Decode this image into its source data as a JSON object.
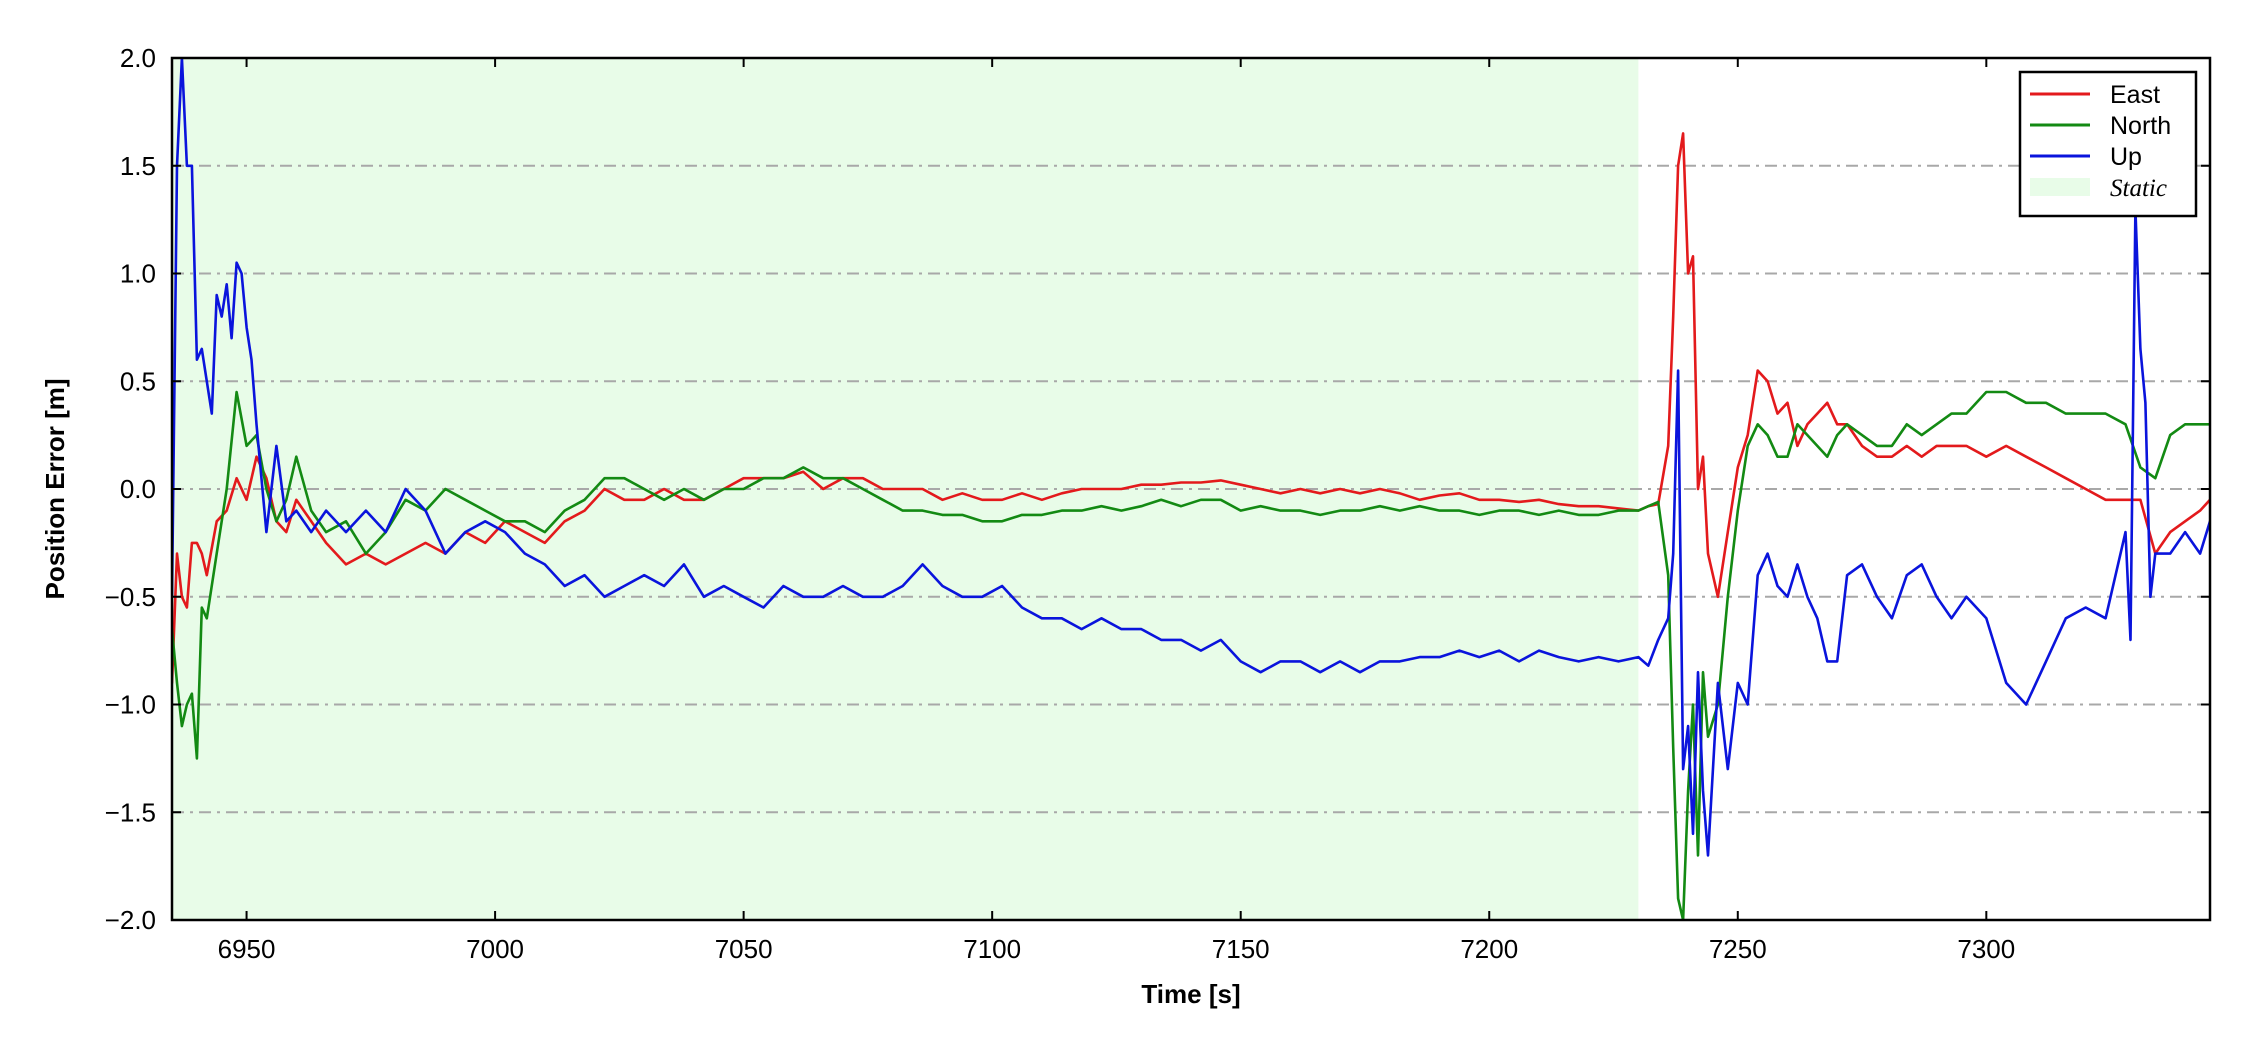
{
  "chart_data": {
    "type": "line",
    "title": "",
    "xlabel": "Time [s]",
    "ylabel": "Position Error [m]",
    "xlim": [
      6935,
      7345
    ],
    "ylim": [
      -2.0,
      2.0
    ],
    "x_ticks": [
      6950,
      7000,
      7050,
      7100,
      7150,
      7200,
      7250,
      7300
    ],
    "x_tick_labels": [
      "6950",
      "7000",
      "7050",
      "7100",
      "7150",
      "7200",
      "7250",
      "7300"
    ],
    "y_ticks": [
      2.0,
      1.5,
      1.0,
      0.5,
      0.0,
      -0.5,
      -1.0,
      -1.5,
      -2.0
    ],
    "y_tick_labels": [
      "2.0",
      "1.5",
      "1.0",
      "0.5",
      "0.0",
      "−0.5",
      "−1.0",
      "−1.5",
      "−2.0"
    ],
    "grid": "horizontal dash-dot",
    "legend_position": "top-right",
    "static_region": {
      "label": "Static",
      "x_range": [
        6935,
        7230
      ],
      "color": "#e8fce8"
    },
    "series": [
      {
        "name": "East",
        "color": "#e31a1c",
        "x": [
          6935,
          6936,
          6937,
          6938,
          6939,
          6940,
          6941,
          6942,
          6944,
          6946,
          6948,
          6950,
          6952,
          6954,
          6956,
          6958,
          6960,
          6963,
          6966,
          6970,
          6974,
          6978,
          6982,
          6986,
          6990,
          6994,
          6998,
          7002,
          7006,
          7010,
          7014,
          7018,
          7022,
          7026,
          7030,
          7034,
          7038,
          7042,
          7046,
          7050,
          7054,
          7058,
          7062,
          7066,
          7070,
          7074,
          7078,
          7082,
          7086,
          7090,
          7094,
          7098,
          7102,
          7106,
          7110,
          7114,
          7118,
          7122,
          7126,
          7130,
          7134,
          7138,
          7142,
          7146,
          7150,
          7154,
          7158,
          7162,
          7166,
          7170,
          7174,
          7178,
          7182,
          7186,
          7190,
          7194,
          7198,
          7202,
          7206,
          7210,
          7214,
          7218,
          7222,
          7226,
          7230,
          7232,
          7234,
          7236,
          7237,
          7238,
          7239,
          7240,
          7241,
          7242,
          7243,
          7244,
          7246,
          7248,
          7250,
          7252,
          7254,
          7256,
          7258,
          7260,
          7262,
          7264,
          7266,
          7268,
          7270,
          7272,
          7275,
          7278,
          7281,
          7284,
          7287,
          7290,
          7293,
          7296,
          7300,
          7304,
          7308,
          7312,
          7316,
          7320,
          7324,
          7328,
          7331,
          7334,
          7337,
          7340,
          7343,
          7345
        ],
        "y": [
          -0.9,
          -0.3,
          -0.5,
          -0.55,
          -0.25,
          -0.25,
          -0.3,
          -0.4,
          -0.15,
          -0.1,
          0.05,
          -0.05,
          0.15,
          0.05,
          -0.15,
          -0.2,
          -0.05,
          -0.15,
          -0.25,
          -0.35,
          -0.3,
          -0.35,
          -0.3,
          -0.25,
          -0.3,
          -0.2,
          -0.25,
          -0.15,
          -0.2,
          -0.25,
          -0.15,
          -0.1,
          0.0,
          -0.05,
          -0.05,
          0.0,
          -0.05,
          -0.05,
          0.0,
          0.05,
          0.05,
          0.05,
          0.08,
          0.0,
          0.05,
          0.05,
          0.0,
          0.0,
          0.0,
          -0.05,
          -0.02,
          -0.05,
          -0.05,
          -0.02,
          -0.05,
          -0.02,
          0.0,
          0.0,
          0.0,
          0.02,
          0.02,
          0.03,
          0.03,
          0.04,
          0.02,
          0.0,
          -0.02,
          0.0,
          -0.02,
          0.0,
          -0.02,
          0.0,
          -0.02,
          -0.05,
          -0.03,
          -0.02,
          -0.05,
          -0.05,
          -0.06,
          -0.05,
          -0.07,
          -0.08,
          -0.08,
          -0.09,
          -0.1,
          -0.08,
          -0.07,
          0.2,
          0.8,
          1.5,
          1.65,
          1.0,
          1.08,
          0.0,
          0.15,
          -0.3,
          -0.5,
          -0.2,
          0.1,
          0.25,
          0.55,
          0.5,
          0.35,
          0.4,
          0.2,
          0.3,
          0.35,
          0.4,
          0.3,
          0.3,
          0.2,
          0.15,
          0.15,
          0.2,
          0.15,
          0.2,
          0.2,
          0.2,
          0.15,
          0.2,
          0.15,
          0.1,
          0.05,
          0.0,
          -0.05,
          -0.05,
          -0.05,
          -0.3,
          -0.2,
          -0.15,
          -0.1,
          -0.05
        ]
      },
      {
        "name": "North",
        "color": "#138a13",
        "x": [
          6935,
          6936,
          6937,
          6938,
          6939,
          6940,
          6941,
          6942,
          6944,
          6946,
          6948,
          6950,
          6952,
          6954,
          6956,
          6958,
          6960,
          6963,
          6966,
          6970,
          6974,
          6978,
          6982,
          6986,
          6990,
          6994,
          6998,
          7002,
          7006,
          7010,
          7014,
          7018,
          7022,
          7026,
          7030,
          7034,
          7038,
          7042,
          7046,
          7050,
          7054,
          7058,
          7062,
          7066,
          7070,
          7074,
          7078,
          7082,
          7086,
          7090,
          7094,
          7098,
          7102,
          7106,
          7110,
          7114,
          7118,
          7122,
          7126,
          7130,
          7134,
          7138,
          7142,
          7146,
          7150,
          7154,
          7158,
          7162,
          7166,
          7170,
          7174,
          7178,
          7182,
          7186,
          7190,
          7194,
          7198,
          7202,
          7206,
          7210,
          7214,
          7218,
          7222,
          7226,
          7230,
          7232,
          7234,
          7236,
          7237,
          7238,
          7239,
          7240,
          7241,
          7242,
          7243,
          7244,
          7246,
          7248,
          7250,
          7252,
          7254,
          7256,
          7258,
          7260,
          7262,
          7264,
          7266,
          7268,
          7270,
          7272,
          7275,
          7278,
          7281,
          7284,
          7287,
          7290,
          7293,
          7296,
          7300,
          7304,
          7308,
          7312,
          7316,
          7320,
          7324,
          7328,
          7331,
          7334,
          7337,
          7340,
          7343,
          7345
        ],
        "y": [
          -0.65,
          -0.9,
          -1.1,
          -1.0,
          -0.95,
          -1.25,
          -0.55,
          -0.6,
          -0.3,
          0.0,
          0.45,
          0.2,
          0.25,
          0.0,
          -0.15,
          -0.05,
          0.15,
          -0.1,
          -0.2,
          -0.15,
          -0.3,
          -0.2,
          -0.05,
          -0.1,
          0.0,
          -0.05,
          -0.1,
          -0.15,
          -0.15,
          -0.2,
          -0.1,
          -0.05,
          0.05,
          0.05,
          0.0,
          -0.05,
          0.0,
          -0.05,
          0.0,
          0.0,
          0.05,
          0.05,
          0.1,
          0.05,
          0.05,
          0.0,
          -0.05,
          -0.1,
          -0.1,
          -0.12,
          -0.12,
          -0.15,
          -0.15,
          -0.12,
          -0.12,
          -0.1,
          -0.1,
          -0.08,
          -0.1,
          -0.08,
          -0.05,
          -0.08,
          -0.05,
          -0.05,
          -0.1,
          -0.08,
          -0.1,
          -0.1,
          -0.12,
          -0.1,
          -0.1,
          -0.08,
          -0.1,
          -0.08,
          -0.1,
          -0.1,
          -0.12,
          -0.1,
          -0.1,
          -0.12,
          -0.1,
          -0.12,
          -0.12,
          -0.1,
          -0.1,
          -0.08,
          -0.06,
          -0.4,
          -1.2,
          -1.9,
          -2.0,
          -1.4,
          -1.0,
          -1.7,
          -0.85,
          -1.15,
          -1.0,
          -0.5,
          -0.1,
          0.2,
          0.3,
          0.25,
          0.15,
          0.15,
          0.3,
          0.25,
          0.2,
          0.15,
          0.25,
          0.3,
          0.25,
          0.2,
          0.2,
          0.3,
          0.25,
          0.3,
          0.35,
          0.35,
          0.45,
          0.45,
          0.4,
          0.4,
          0.35,
          0.35,
          0.35,
          0.3,
          0.1,
          0.05,
          0.25,
          0.3,
          0.3,
          0.3
        ]
      },
      {
        "name": "Up",
        "color": "#0a14dc",
        "x": [
          6935,
          6936,
          6937,
          6938,
          6939,
          6940,
          6941,
          6942,
          6943,
          6944,
          6945,
          6946,
          6947,
          6948,
          6949,
          6950,
          6951,
          6952,
          6954,
          6956,
          6958,
          6960,
          6963,
          6966,
          6970,
          6974,
          6978,
          6982,
          6986,
          6990,
          6994,
          6998,
          7002,
          7006,
          7010,
          7014,
          7018,
          7022,
          7026,
          7030,
          7034,
          7038,
          7042,
          7046,
          7050,
          7054,
          7058,
          7062,
          7066,
          7070,
          7074,
          7078,
          7082,
          7086,
          7090,
          7094,
          7098,
          7102,
          7106,
          7110,
          7114,
          7118,
          7122,
          7126,
          7130,
          7134,
          7138,
          7142,
          7146,
          7150,
          7154,
          7158,
          7162,
          7166,
          7170,
          7174,
          7178,
          7182,
          7186,
          7190,
          7194,
          7198,
          7202,
          7206,
          7210,
          7214,
          7218,
          7222,
          7226,
          7230,
          7232,
          7234,
          7236,
          7237,
          7238,
          7239,
          7240,
          7241,
          7242,
          7243,
          7244,
          7246,
          7248,
          7250,
          7252,
          7254,
          7256,
          7258,
          7260,
          7262,
          7264,
          7266,
          7268,
          7270,
          7272,
          7275,
          7278,
          7281,
          7284,
          7287,
          7290,
          7293,
          7296,
          7300,
          7304,
          7308,
          7312,
          7316,
          7320,
          7324,
          7328,
          7329,
          7330,
          7331,
          7332,
          7333,
          7334,
          7337,
          7340,
          7343,
          7345
        ],
        "y": [
          -0.5,
          1.5,
          2.0,
          1.5,
          1.5,
          0.6,
          0.65,
          0.5,
          0.35,
          0.9,
          0.8,
          0.95,
          0.7,
          1.05,
          1.0,
          0.75,
          0.6,
          0.3,
          -0.2,
          0.2,
          -0.15,
          -0.1,
          -0.2,
          -0.1,
          -0.2,
          -0.1,
          -0.2,
          0.0,
          -0.1,
          -0.3,
          -0.2,
          -0.15,
          -0.2,
          -0.3,
          -0.35,
          -0.45,
          -0.4,
          -0.5,
          -0.45,
          -0.4,
          -0.45,
          -0.35,
          -0.5,
          -0.45,
          -0.5,
          -0.55,
          -0.45,
          -0.5,
          -0.5,
          -0.45,
          -0.5,
          -0.5,
          -0.45,
          -0.35,
          -0.45,
          -0.5,
          -0.5,
          -0.45,
          -0.55,
          -0.6,
          -0.6,
          -0.65,
          -0.6,
          -0.65,
          -0.65,
          -0.7,
          -0.7,
          -0.75,
          -0.7,
          -0.8,
          -0.85,
          -0.8,
          -0.8,
          -0.85,
          -0.8,
          -0.85,
          -0.8,
          -0.8,
          -0.78,
          -0.78,
          -0.75,
          -0.78,
          -0.75,
          -0.8,
          -0.75,
          -0.78,
          -0.8,
          -0.78,
          -0.8,
          -0.78,
          -0.82,
          -0.7,
          -0.6,
          -0.3,
          0.55,
          -1.3,
          -1.1,
          -1.6,
          -0.85,
          -1.4,
          -1.7,
          -0.9,
          -1.3,
          -0.9,
          -1.0,
          -0.4,
          -0.3,
          -0.45,
          -0.5,
          -0.35,
          -0.5,
          -0.6,
          -0.8,
          -0.8,
          -0.4,
          -0.35,
          -0.5,
          -0.6,
          -0.4,
          -0.35,
          -0.5,
          -0.6,
          -0.5,
          -0.6,
          -0.9,
          -1.0,
          -0.8,
          -0.6,
          -0.55,
          -0.6,
          -0.2,
          -0.7,
          1.3,
          0.65,
          0.4,
          -0.5,
          -0.3,
          -0.3,
          -0.2,
          -0.3,
          -0.15
        ]
      }
    ]
  }
}
